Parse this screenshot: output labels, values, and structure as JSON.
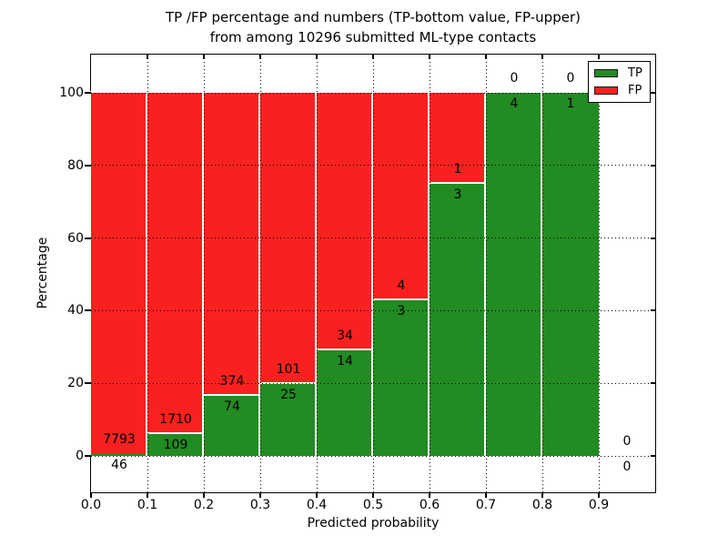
{
  "title": {
    "line1": "TP /FP percentage and numbers (TP-bottom value, FP-upper)",
    "line2": "from among 10296 submitted ML-type contacts"
  },
  "axes": {
    "xlabel": "Predicted probability",
    "ylabel": "Percentage",
    "x_tick_labels": [
      "0.0",
      "0.1",
      "0.2",
      "0.3",
      "0.4",
      "0.5",
      "0.6",
      "0.7",
      "0.8",
      "0.9"
    ],
    "y_tick_labels": [
      "0",
      "20",
      "40",
      "60",
      "80",
      "100"
    ],
    "y_tick_values": [
      0,
      20,
      40,
      60,
      80,
      100
    ],
    "xlim": [
      0.0,
      1.0
    ],
    "ylim": [
      -10,
      110
    ],
    "grid_style": "dotted"
  },
  "legend": {
    "position": "upper right",
    "items": [
      {
        "label": "TP",
        "color": "#228b22"
      },
      {
        "label": "FP",
        "color": "#f92120"
      }
    ]
  },
  "chart_data": {
    "type": "bar",
    "stacked": true,
    "title": "TP /FP percentage and numbers (TP-bottom value, FP-upper) from among 10296 submitted ML-type contacts",
    "xlabel": "Predicted probability",
    "ylabel": "Percentage",
    "total_contacts": 10296,
    "bin_width": 0.1,
    "series_colors": {
      "tp": "#228b22",
      "fp": "#f92120"
    },
    "edge_color": "#ffffff",
    "bins": [
      {
        "range": [
          0.0,
          0.1
        ],
        "tp": 46,
        "fp": 7793,
        "tp_pct": 0.59
      },
      {
        "range": [
          0.1,
          0.2
        ],
        "tp": 109,
        "fp": 1710,
        "tp_pct": 5.99
      },
      {
        "range": [
          0.2,
          0.3
        ],
        "tp": 74,
        "fp": 374,
        "tp_pct": 16.52
      },
      {
        "range": [
          0.3,
          0.4
        ],
        "tp": 25,
        "fp": 101,
        "tp_pct": 19.84
      },
      {
        "range": [
          0.4,
          0.5
        ],
        "tp": 14,
        "fp": 34,
        "tp_pct": 29.17
      },
      {
        "range": [
          0.5,
          0.6
        ],
        "tp": 3,
        "fp": 4,
        "tp_pct": 42.86
      },
      {
        "range": [
          0.6,
          0.7
        ],
        "tp": 3,
        "fp": 1,
        "tp_pct": 75.0
      },
      {
        "range": [
          0.7,
          0.8
        ],
        "tp": 4,
        "fp": 0,
        "tp_pct": 100.0
      },
      {
        "range": [
          0.8,
          0.9
        ],
        "tp": 1,
        "fp": 0,
        "tp_pct": 100.0
      },
      {
        "range": [
          0.9,
          1.0
        ],
        "tp": 0,
        "fp": 0,
        "tp_pct": 0.0
      }
    ]
  }
}
